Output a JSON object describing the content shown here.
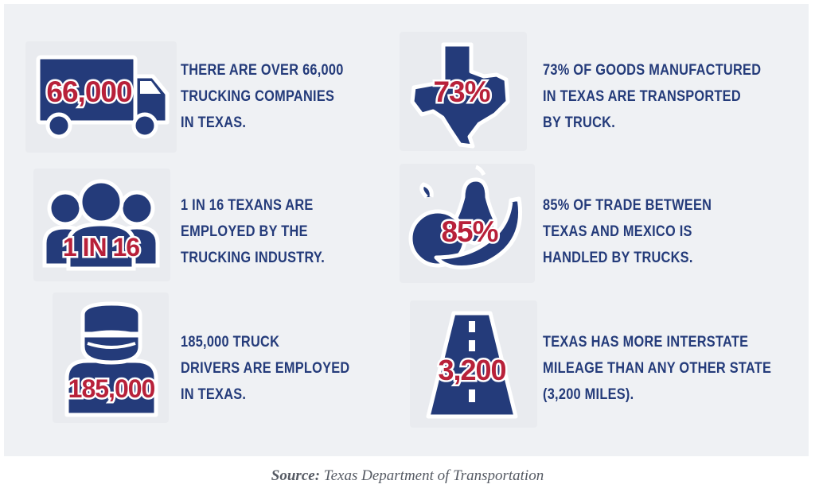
{
  "colors": {
    "navy": "#243b7a",
    "red": "#b8213a",
    "panel": "#eff1f4"
  },
  "facts": [
    {
      "icon": "truck-icon",
      "stat": "66,000",
      "lines": [
        "THERE ARE OVER 66,000",
        "TRUCKING COMPANIES",
        "IN TEXAS."
      ]
    },
    {
      "icon": "texas-map-icon",
      "stat": "73%",
      "lines": [
        "73% OF GOODS MANUFACTURED",
        "IN TEXAS ARE TRANSPORTED",
        "BY TRUCK."
      ]
    },
    {
      "icon": "people-group-icon",
      "stat": "1 IN 16",
      "lines": [
        "1 IN 16 TEXANS ARE",
        "EMPLOYED BY THE",
        "TRUCKING INDUSTRY."
      ]
    },
    {
      "icon": "produce-icon",
      "stat": "85%",
      "lines": [
        "85% OF TRADE BETWEEN",
        "TEXAS AND MEXICO IS",
        "HANDLED BY TRUCKS."
      ]
    },
    {
      "icon": "driver-icon",
      "stat": "185,000",
      "lines": [
        "185,000 TRUCK",
        "DRIVERS ARE EMPLOYED",
        "IN TEXAS."
      ]
    },
    {
      "icon": "highway-icon",
      "stat": "3,200",
      "lines": [
        "TEXAS HAS MORE INTERSTATE",
        "MILEAGE THAN ANY OTHER STATE",
        "(3,200 MILES)."
      ]
    }
  ],
  "source": {
    "label": "Source:",
    "text": "Texas Department of Transportation"
  }
}
